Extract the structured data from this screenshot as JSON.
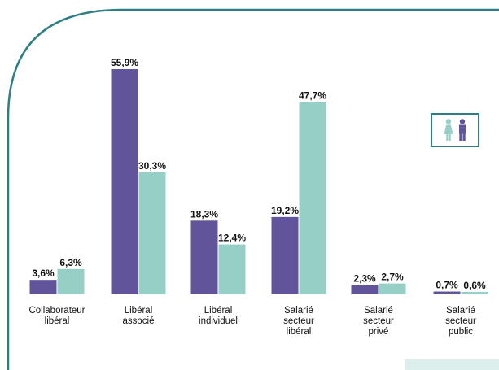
{
  "chart_data": {
    "type": "bar",
    "categories": [
      [
        "Collaborateur",
        "libéral"
      ],
      [
        "Libéral",
        "associé"
      ],
      [
        "Libéral",
        "individuel"
      ],
      [
        "Salarié",
        "secteur",
        "libéral"
      ],
      [
        "Salarié",
        "secteur",
        "privé"
      ],
      [
        "Salarié",
        "secteur",
        "public"
      ]
    ],
    "series": [
      {
        "values": [
          3.6,
          55.9,
          18.3,
          19.2,
          2.3,
          0.7
        ],
        "labels": [
          "3,6%",
          "55,9%",
          "18,3%",
          "19,2%",
          "2,3%",
          "0,7%"
        ],
        "color": "#62549b"
      },
      {
        "values": [
          6.3,
          30.3,
          12.4,
          47.7,
          2.7,
          0.6
        ],
        "labels": [
          "6,3%",
          "30,3%",
          "12,4%",
          "47,7%",
          "2,7%",
          "0,6%"
        ],
        "color": "#96cfc6"
      }
    ],
    "ylim": [
      0,
      55.9
    ],
    "grid": false,
    "legend_icons": [
      "woman-icon",
      "man-icon"
    ],
    "legend_placement": "right"
  },
  "colors": {
    "frame": "#2c7f86",
    "series_purple": "#62549b",
    "series_teal": "#96cfc6",
    "corner_panel": "#dcefec"
  }
}
